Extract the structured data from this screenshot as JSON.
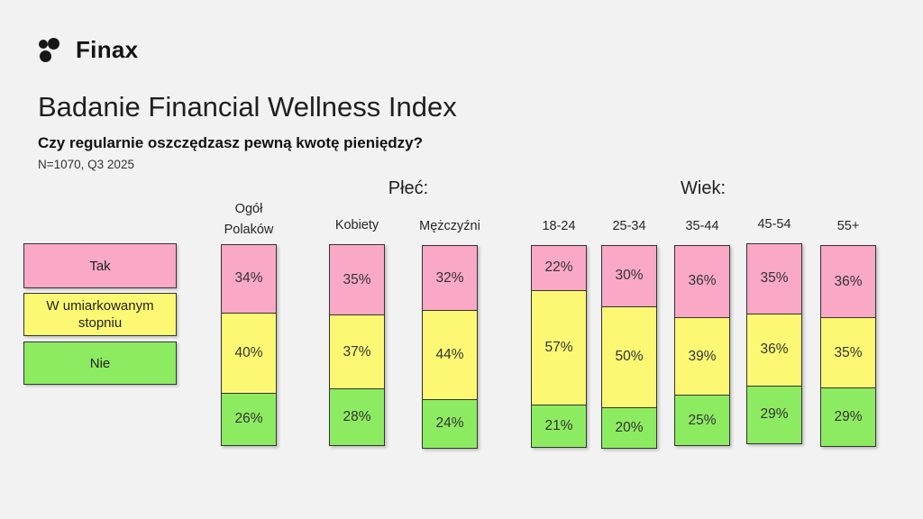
{
  "brand": {
    "name": "Finax"
  },
  "header": {
    "title": "Badanie Financial Wellness Index",
    "subtitle": "Czy regularnie oszczędzasz pewną kwotę pieniędzy?",
    "sample_note": "N=1070, Q3 2025"
  },
  "colors": {
    "background": "#F2F2F2",
    "tak": "#F9A8C5",
    "umiarkowany": "#FCF873",
    "nie": "#8DEB61",
    "border": "#333333"
  },
  "legend": [
    {
      "label": "Tak",
      "color_key": "tak"
    },
    {
      "label": "W umiarkowanym stopniu",
      "color_key": "umiarkowany"
    },
    {
      "label": "Nie",
      "color_key": "nie"
    }
  ],
  "sections": [
    {
      "label": "Płeć:"
    },
    {
      "label": "Wiek:"
    }
  ],
  "chart_data": {
    "type": "bar",
    "stacked": true,
    "unit": "%",
    "title": "Badanie Financial Wellness Index",
    "question": "Czy regularnie oszczędzasz pewną kwotę pieniędzy?",
    "series_names": [
      "Tak",
      "W umiarkowanym stopniu",
      "Nie"
    ],
    "ylim": [
      0,
      100
    ],
    "legend_position": "left",
    "bars": [
      {
        "category": "Ogół Polaków",
        "display_label": "Ogół\nPolaków",
        "section": null,
        "values": {
          "tak": 34,
          "umiarkowany": 40,
          "nie": 26
        }
      },
      {
        "category": "Kobiety",
        "display_label": "Kobiety",
        "section": "Płeć:",
        "values": {
          "tak": 35,
          "umiarkowany": 37,
          "nie": 28
        }
      },
      {
        "category": "Mężczyźni",
        "display_label": "Mężczyźni",
        "section": "Płeć:",
        "values": {
          "tak": 32,
          "umiarkowany": 44,
          "nie": 24
        }
      },
      {
        "category": "18-24",
        "display_label": "18-24",
        "section": "Wiek:",
        "values": {
          "tak": 22,
          "umiarkowany": 57,
          "nie": 21
        }
      },
      {
        "category": "25-34",
        "display_label": "25-34",
        "section": "Wiek:",
        "values": {
          "tak": 30,
          "umiarkowany": 50,
          "nie": 20
        }
      },
      {
        "category": "35-44",
        "display_label": "35-44",
        "section": "Wiek:",
        "values": {
          "tak": 36,
          "umiarkowany": 39,
          "nie": 25
        }
      },
      {
        "category": "45-54",
        "display_label": "45-54",
        "section": "Wiek:",
        "values": {
          "tak": 35,
          "umiarkowany": 36,
          "nie": 29
        }
      },
      {
        "category": "55+",
        "display_label": "55+",
        "section": "Wiek:",
        "values": {
          "tak": 36,
          "umiarkowany": 35,
          "nie": 29
        }
      }
    ]
  }
}
